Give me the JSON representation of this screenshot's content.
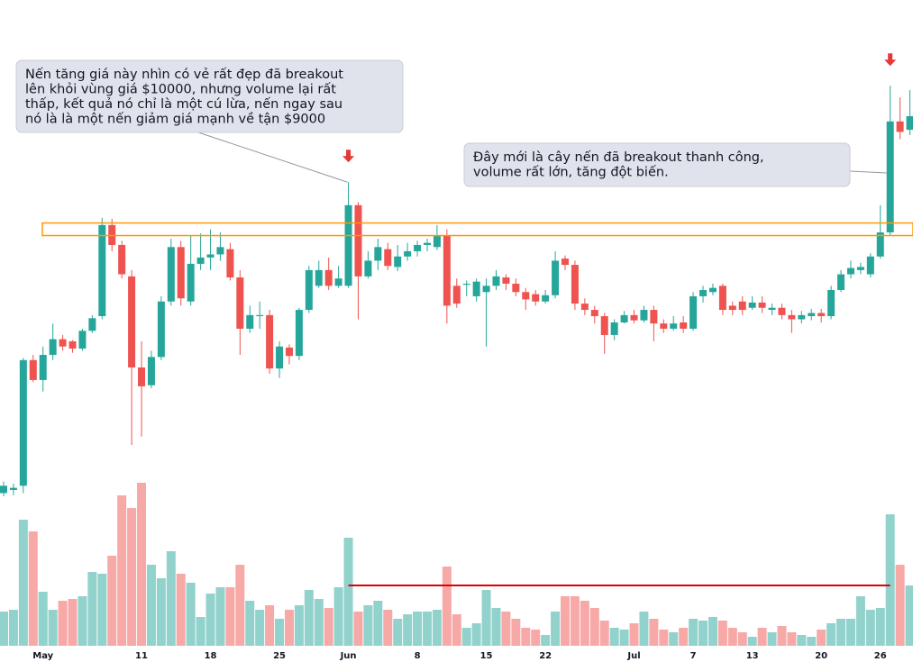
{
  "chart_data": {
    "type": "candlestick",
    "categories": [
      null,
      null,
      null,
      null,
      "May",
      null,
      null,
      null,
      null,
      null,
      null,
      null,
      null,
      null,
      "11",
      null,
      null,
      null,
      null,
      null,
      null,
      "18",
      null,
      null,
      null,
      null,
      null,
      null,
      "25",
      null,
      null,
      null,
      null,
      null,
      null,
      "Jun",
      null,
      null,
      null,
      null,
      null,
      null,
      "8",
      null,
      null,
      null,
      null,
      null,
      null,
      "15",
      null,
      null,
      null,
      null,
      null,
      "22",
      null,
      null,
      null,
      null,
      null,
      null,
      null,
      null,
      "Jul",
      null,
      null,
      null,
      null,
      null,
      "7",
      null,
      null,
      null,
      null,
      null,
      "13",
      null,
      null,
      null,
      null,
      null,
      null,
      "20",
      null,
      null,
      null,
      null,
      null,
      "26",
      null,
      null,
      null
    ],
    "open": [
      7480,
      7510,
      7550,
      8750,
      8560,
      8800,
      8950,
      8930,
      8860,
      9030,
      9170,
      10040,
      9850,
      9550,
      8680,
      8510,
      8780,
      9310,
      9830,
      9310,
      9670,
      9730,
      9760,
      9810,
      9540,
      9050,
      9170,
      9180,
      8670,
      8870,
      8790,
      9230,
      9460,
      9610,
      9460,
      9460,
      10230,
      9550,
      9700,
      9810,
      9640,
      9740,
      9790,
      9850,
      9830,
      9940,
      9460,
      9470,
      9360,
      9400,
      9460,
      9540,
      9480,
      9400,
      9380,
      9310,
      9370,
      9720,
      9660,
      9290,
      9230,
      9170,
      8990,
      9110,
      9180,
      9130,
      9230,
      9100,
      9050,
      9110,
      9050,
      9360,
      9400,
      9460,
      9270,
      9310,
      9250,
      9300,
      9230,
      9250,
      9180,
      9140,
      9170,
      9200,
      9170,
      9420,
      9570,
      9610,
      9570,
      9740,
      9970,
      11030,
      10950
    ],
    "high": [
      7590,
      7570,
      8770,
      8800,
      8880,
      9100,
      8990,
      8940,
      9050,
      9180,
      10110,
      10100,
      9890,
      9610,
      8930,
      8840,
      9360,
      9910,
      9890,
      9940,
      9960,
      10000,
      9970,
      9870,
      9610,
      9270,
      9310,
      9230,
      8930,
      8900,
      9250,
      9650,
      9700,
      9730,
      9650,
      10450,
      10260,
      9790,
      9910,
      9870,
      9850,
      9870,
      9890,
      9910,
      10040,
      10000,
      9530,
      9510,
      9530,
      9530,
      9610,
      9570,
      9530,
      9440,
      9420,
      9420,
      9790,
      9750,
      9700,
      9340,
      9270,
      9200,
      9140,
      9220,
      9230,
      9270,
      9270,
      9140,
      9170,
      9170,
      9400,
      9460,
      9480,
      9480,
      9310,
      9360,
      9360,
      9360,
      9290,
      9290,
      9230,
      9220,
      9240,
      9240,
      9460,
      9610,
      9700,
      9680,
      9770,
      10230,
      11370,
      11260,
      11330
    ],
    "low": [
      7450,
      7460,
      7480,
      8540,
      8450,
      8750,
      8840,
      8820,
      8840,
      9010,
      9140,
      9790,
      9530,
      7940,
      8020,
      8480,
      8750,
      9270,
      9270,
      9270,
      9610,
      9610,
      9700,
      9510,
      8800,
      9010,
      9050,
      8620,
      8580,
      8710,
      8750,
      9200,
      9440,
      9420,
      9440,
      9440,
      9140,
      9530,
      9610,
      9610,
      9600,
      9700,
      9740,
      9790,
      9800,
      9100,
      9250,
      9360,
      9310,
      8880,
      9420,
      9420,
      9360,
      9230,
      9270,
      9290,
      9340,
      9610,
      9230,
      9180,
      9100,
      8810,
      8940,
      9100,
      9100,
      9110,
      8930,
      9010,
      9030,
      9010,
      9030,
      9300,
      9370,
      9180,
      9180,
      9180,
      9230,
      9200,
      9180,
      9140,
      9010,
      9100,
      9130,
      9110,
      9140,
      9400,
      9530,
      9570,
      9540,
      9720,
      9940,
      10860,
      10900
    ],
    "close": [
      7550,
      7530,
      8750,
      8560,
      8800,
      8950,
      8880,
      8860,
      9030,
      9150,
      10040,
      9850,
      9570,
      8680,
      8500,
      8780,
      9310,
      9830,
      9340,
      9670,
      9730,
      9760,
      9830,
      9540,
      9050,
      9180,
      9180,
      8670,
      8880,
      8790,
      9230,
      9610,
      9610,
      9460,
      9530,
      10230,
      9550,
      9700,
      9830,
      9650,
      9740,
      9790,
      9850,
      9870,
      9940,
      9270,
      9290,
      9480,
      9500,
      9460,
      9550,
      9480,
      9400,
      9330,
      9310,
      9370,
      9700,
      9660,
      9290,
      9230,
      9170,
      8990,
      9110,
      9180,
      9130,
      9230,
      9100,
      9050,
      9100,
      9050,
      9360,
      9420,
      9440,
      9230,
      9230,
      9230,
      9300,
      9250,
      9250,
      9180,
      9140,
      9180,
      9200,
      9170,
      9420,
      9570,
      9630,
      9640,
      9740,
      9970,
      11030,
      10930,
      11080
    ],
    "volume": [
      38,
      40,
      140,
      127,
      60,
      40,
      50,
      52,
      55,
      82,
      80,
      100,
      167,
      153,
      181,
      90,
      75,
      105,
      80,
      70,
      32,
      58,
      65,
      65,
      90,
      50,
      40,
      45,
      30,
      40,
      45,
      62,
      52,
      42,
      65,
      120,
      38,
      45,
      50,
      40,
      30,
      35,
      38,
      38,
      40,
      88,
      35,
      20,
      25,
      62,
      42,
      38,
      30,
      20,
      18,
      12,
      38,
      55,
      55,
      50,
      42,
      28,
      20,
      18,
      25,
      38,
      30,
      18,
      15,
      20,
      30,
      28,
      32,
      28,
      20,
      15,
      10,
      20,
      15,
      22,
      15,
      12,
      10,
      18,
      25,
      30,
      30,
      55,
      40,
      42,
      146,
      90,
      67
    ],
    "ylim": [
      7200,
      12190
    ],
    "vlim": [
      0,
      200
    ],
    "up_color": "#26a69a",
    "down_color": "#ef5350",
    "zone_color": "#ff9800",
    "zone": [
      9940,
      10060
    ],
    "volume_marker": 67,
    "annotations": [
      {
        "lines": [
          "Nến tăng giá này nhìn có vẻ rất đẹp đã breakout",
          "lên khỏi vùng giá $10000, nhưng volume lại rất",
          "thấp, kết quả nó chỉ là một cú lừa, nến ngay sau",
          "nó là là một nến giảm giá mạnh về tận $9000"
        ]
      },
      {
        "lines": [
          "Đây mới là cây nến đã breakout thanh công,",
          "volume rất lớn, tăng đột biến."
        ]
      }
    ]
  }
}
